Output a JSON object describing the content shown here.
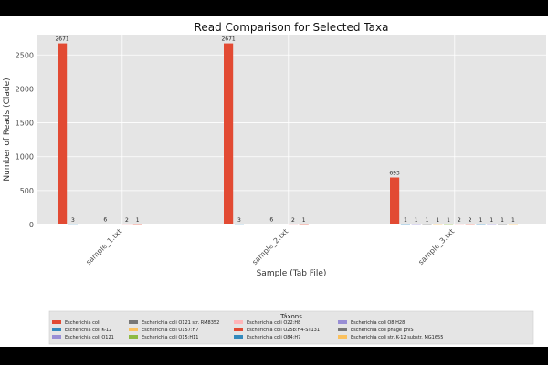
{
  "chart_data": {
    "type": "bar",
    "title": "Read Comparison for Selected Taxa",
    "xlabel": "Sample (Tab File)",
    "ylabel": "Number of Reads (Clade)",
    "ylim": [
      0,
      2800
    ],
    "yticks": [
      0,
      500,
      1000,
      1500,
      2000,
      2500
    ],
    "grid": true,
    "legend_placement": "bottom-center",
    "legend_title": "Táxons",
    "categories": [
      "sample_1.txt",
      "sample_2.txt",
      "sample_3.txt"
    ],
    "series": [
      {
        "name": "Escherichia coli",
        "color": "#e24a33",
        "values": [
          2671,
          2671,
          693
        ]
      },
      {
        "name": "Escherichia coli K-12",
        "color": "#348abd",
        "values": [
          3,
          3,
          1
        ]
      },
      {
        "name": "Escherichia coli O121",
        "color": "#988ed5",
        "values": [
          null,
          null,
          1
        ]
      },
      {
        "name": "Escherichia coli O121 str. RM8352",
        "color": "#777777",
        "values": [
          null,
          null,
          1
        ]
      },
      {
        "name": "Escherichia coli O157:H7",
        "color": "#fbc15e",
        "values": [
          6,
          6,
          1
        ]
      },
      {
        "name": "Escherichia coli O15:H11",
        "color": "#8eba42",
        "values": [
          null,
          null,
          1
        ]
      },
      {
        "name": "Escherichia coli O22:H8",
        "color": "#ffb5b8",
        "values": [
          2,
          2,
          2
        ]
      },
      {
        "name": "Escherichia coli O25b:H4-ST131",
        "color": "#e24a33",
        "values": [
          1,
          1,
          2
        ]
      },
      {
        "name": "Escherichia coli O84:H7",
        "color": "#348abd",
        "values": [
          null,
          null,
          1
        ]
      },
      {
        "name": "Escherichia coli O8:H28",
        "color": "#988ed5",
        "values": [
          null,
          null,
          1
        ]
      },
      {
        "name": "Escherichia coli phage phiS",
        "color": "#777777",
        "values": [
          null,
          null,
          1
        ]
      },
      {
        "name": "Escherichia coli str. K-12 substr. MG1655",
        "color": "#fbc15e",
        "values": [
          null,
          null,
          1
        ]
      }
    ]
  }
}
